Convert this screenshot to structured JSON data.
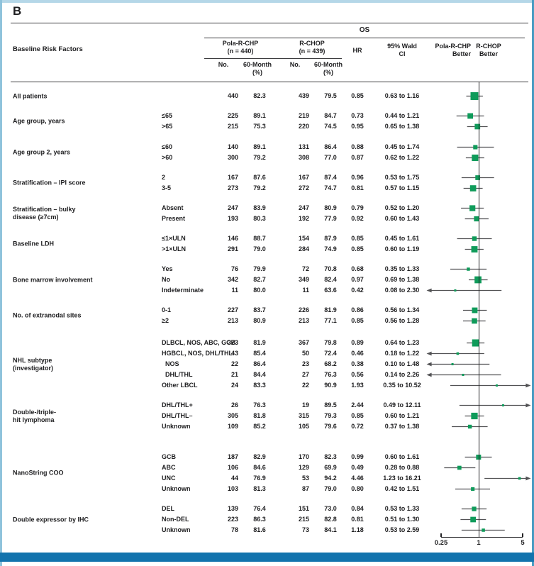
{
  "panel_label": "B",
  "header": {
    "risk_label": "Baseline Risk Factors",
    "outcome": "OS",
    "arm1_name": "Pola-R-CHP",
    "arm1_n": "(n = 440)",
    "arm2_name": "R-CHOP",
    "arm2_n": "(n = 439)",
    "no_label": "No.",
    "month_label": "60-Month",
    "pct_label": "(%)",
    "hr_label": "HR",
    "ci_label_l1": "95% Wald",
    "ci_label_l2": "CI",
    "better_left_l1": "Pola-R-CHP",
    "better_left_l2": "Better",
    "better_right_l1": "R-CHOP",
    "better_right_l2": "Better"
  },
  "axis": {
    "tick_labels": [
      "0.25",
      "1",
      "5"
    ],
    "min": 0.25,
    "max": 5,
    "ref": 1
  },
  "colors": {
    "marker": "#0f9b5a",
    "ci_line": "#525254",
    "rule": "#3d3d3f",
    "footer_bar": "#1273ad",
    "border_top": "#b5d7e8",
    "border_left": "#8fc3dc",
    "border_right": "#4a9cc2"
  },
  "chart_data": {
    "type": "forest",
    "outcome": "OS",
    "x_scale": "log",
    "x_ticks": [
      0.25,
      1,
      5
    ],
    "x_axis_labels": [
      "0.25",
      "1",
      "5"
    ],
    "groups": [
      {
        "label": "All patients",
        "rows": [
          {
            "name": "",
            "n1": 440,
            "p1": "82.3",
            "n2": 439,
            "p2": "79.5",
            "hr": "0.85",
            "lo": 0.63,
            "hi": 1.16,
            "ci": "0.63 to 1.16"
          }
        ]
      },
      {
        "label": "Age group, years",
        "rows": [
          {
            "name": "≤65",
            "n1": 225,
            "p1": "89.1",
            "n2": 219,
            "p2": "84.7",
            "hr": "0.73",
            "lo": 0.44,
            "hi": 1.21,
            "ci": "0.44 to 1.21"
          },
          {
            "name": ">65",
            "n1": 215,
            "p1": "75.3",
            "n2": 220,
            "p2": "74.5",
            "hr": "0.95",
            "lo": 0.65,
            "hi": 1.38,
            "ci": "0.65 to 1.38"
          }
        ]
      },
      {
        "label": "Age group 2, years",
        "rows": [
          {
            "name": "≤60",
            "n1": 140,
            "p1": "89.1",
            "n2": 131,
            "p2": "86.4",
            "hr": "0.88",
            "lo": 0.45,
            "hi": 1.74,
            "ci": "0.45 to 1.74"
          },
          {
            "name": ">60",
            "n1": 300,
            "p1": "79.2",
            "n2": 308,
            "p2": "77.0",
            "hr": "0.87",
            "lo": 0.62,
            "hi": 1.22,
            "ci": "0.62 to 1.22"
          }
        ]
      },
      {
        "label": "Stratification – IPI score",
        "rows": [
          {
            "name": "2",
            "n1": 167,
            "p1": "87.6",
            "n2": 167,
            "p2": "87.4",
            "hr": "0.96",
            "lo": 0.53,
            "hi": 1.75,
            "ci": "0.53 to 1.75"
          },
          {
            "name": "3-5",
            "n1": 273,
            "p1": "79.2",
            "n2": 272,
            "p2": "74.7",
            "hr": "0.81",
            "lo": 0.57,
            "hi": 1.15,
            "ci": "0.57 to 1.15"
          }
        ]
      },
      {
        "label": "Stratification – bulky\ndisease (≥7cm)",
        "rows": [
          {
            "name": "Absent",
            "n1": 247,
            "p1": "83.9",
            "n2": 247,
            "p2": "80.9",
            "hr": "0.79",
            "lo": 0.52,
            "hi": 1.2,
            "ci": "0.52 to 1.20"
          },
          {
            "name": "Present",
            "n1": 193,
            "p1": "80.3",
            "n2": 192,
            "p2": "77.9",
            "hr": "0.92",
            "lo": 0.6,
            "hi": 1.43,
            "ci": "0.60 to 1.43"
          }
        ]
      },
      {
        "label": "Baseline LDH",
        "rows": [
          {
            "name": "≤1×ULN",
            "n1": 146,
            "p1": "88.7",
            "n2": 154,
            "p2": "87.9",
            "hr": "0.85",
            "lo": 0.45,
            "hi": 1.61,
            "ci": "0.45 to 1.61"
          },
          {
            "name": ">1×ULN",
            "n1": 291,
            "p1": "79.0",
            "n2": 284,
            "p2": "74.9",
            "hr": "0.85",
            "lo": 0.6,
            "hi": 1.19,
            "ci": "0.60 to 1.19"
          }
        ]
      },
      {
        "label": "Bone marrow involvement",
        "rows": [
          {
            "name": "Yes",
            "n1": 76,
            "p1": "79.9",
            "n2": 72,
            "p2": "70.8",
            "hr": "0.68",
            "lo": 0.35,
            "hi": 1.33,
            "ci": "0.35 to 1.33"
          },
          {
            "name": "No",
            "n1": 342,
            "p1": "82.7",
            "n2": 349,
            "p2": "82.4",
            "hr": "0.97",
            "lo": 0.69,
            "hi": 1.38,
            "ci": "0.69 to 1.38"
          },
          {
            "name": "Indeterminate",
            "n1": 11,
            "p1": "80.0",
            "n2": 11,
            "p2": "63.6",
            "hr": "0.42",
            "lo": 0.08,
            "hi": 2.3,
            "ci": "0.08 to 2.30"
          }
        ]
      },
      {
        "label": "No. of extranodal sites",
        "rows": [
          {
            "name": "0-1",
            "n1": 227,
            "p1": "83.7",
            "n2": 226,
            "p2": "81.9",
            "hr": "0.86",
            "lo": 0.56,
            "hi": 1.34,
            "ci": "0.56 to 1.34"
          },
          {
            "name": "≥2",
            "n1": 213,
            "p1": "80.9",
            "n2": 213,
            "p2": "77.1",
            "hr": "0.85",
            "lo": 0.56,
            "hi": 1.28,
            "ci": "0.56 to 1.28"
          }
        ]
      },
      {
        "label": "NHL subtype\n(investigator)",
        "rows": [
          {
            "name": "DLBCL, NOS, ABC, GCB",
            "n1": 373,
            "p1": "81.9",
            "n2": 367,
            "p2": "79.8",
            "hr": "0.89",
            "lo": 0.64,
            "hi": 1.23,
            "ci": "0.64 to 1.23"
          },
          {
            "name": "HGBCL, NOS, DHL/THL",
            "n1": 43,
            "p1": "85.4",
            "n2": 50,
            "p2": "72.4",
            "hr": "0.46",
            "lo": 0.18,
            "hi": 1.22,
            "ci": "0.18 to 1.22"
          },
          {
            "name": "NOS",
            "indent": true,
            "n1": 22,
            "p1": "86.4",
            "n2": 23,
            "p2": "68.2",
            "hr": "0.38",
            "lo": 0.1,
            "hi": 1.48,
            "ci": "0.10 to 1.48"
          },
          {
            "name": "DHL/THL",
            "indent": true,
            "n1": 21,
            "p1": "84.4",
            "n2": 27,
            "p2": "76.3",
            "hr": "0.56",
            "lo": 0.14,
            "hi": 2.26,
            "ci": "0.14 to 2.26"
          },
          {
            "name": "Other LBCL",
            "n1": 24,
            "p1": "83.3",
            "n2": 22,
            "p2": "90.9",
            "hr": "1.93",
            "lo": 0.35,
            "hi": 10.52,
            "ci": "0.35 to 10.52"
          }
        ]
      },
      {
        "label": "Double-/triple-\nhit lymphoma",
        "rows": [
          {
            "name": "DHL/THL+",
            "n1": 26,
            "p1": "76.3",
            "n2": 19,
            "p2": "89.5",
            "hr": "2.44",
            "lo": 0.49,
            "hi": 12.11,
            "ci": "0.49 to 12.11"
          },
          {
            "name": "DHL/THL–",
            "n1": 305,
            "p1": "81.8",
            "n2": 315,
            "p2": "79.3",
            "hr": "0.85",
            "lo": 0.6,
            "hi": 1.21,
            "ci": "0.60 to 1.21"
          },
          {
            "name": "Unknown",
            "n1": 109,
            "p1": "85.2",
            "n2": 105,
            "p2": "79.6",
            "hr": "0.72",
            "lo": 0.37,
            "hi": 1.38,
            "ci": "0.37 to 1.38"
          }
        ]
      },
      {
        "label": "NanoString COO",
        "rows": [
          {
            "name": "GCB",
            "n1": 187,
            "p1": "82.9",
            "n2": 170,
            "p2": "82.3",
            "hr": "0.99",
            "lo": 0.6,
            "hi": 1.61,
            "ci": "0.60 to 1.61"
          },
          {
            "name": "ABC",
            "n1": 106,
            "p1": "84.6",
            "n2": 129,
            "p2": "69.9",
            "hr": "0.49",
            "lo": 0.28,
            "hi": 0.88,
            "ci": "0.28 to 0.88"
          },
          {
            "name": "UNC",
            "n1": 44,
            "p1": "76.9",
            "n2": 53,
            "p2": "94.2",
            "hr": "4.46",
            "lo": 1.23,
            "hi": 16.21,
            "ci": "1.23 to 16.21"
          },
          {
            "name": "Unknown",
            "n1": 103,
            "p1": "81.3",
            "n2": 87,
            "p2": "79.0",
            "hr": "0.80",
            "lo": 0.42,
            "hi": 1.51,
            "ci": "0.42 to 1.51"
          }
        ]
      },
      {
        "label": "Double expressor by IHC",
        "rows": [
          {
            "name": "DEL",
            "n1": 139,
            "p1": "76.4",
            "n2": 151,
            "p2": "73.0",
            "hr": "0.84",
            "lo": 0.53,
            "hi": 1.33,
            "ci": "0.53 to 1.33"
          },
          {
            "name": "Non-DEL",
            "n1": 223,
            "p1": "86.3",
            "n2": 215,
            "p2": "82.8",
            "hr": "0.81",
            "lo": 0.51,
            "hi": 1.3,
            "ci": "0.51 to 1.30"
          },
          {
            "name": "Unknown",
            "n1": 78,
            "p1": "81.6",
            "n2": 73,
            "p2": "84.1",
            "hr": "1.18",
            "lo": 0.53,
            "hi": 2.59,
            "ci": "0.53 to 2.59"
          }
        ]
      }
    ]
  }
}
